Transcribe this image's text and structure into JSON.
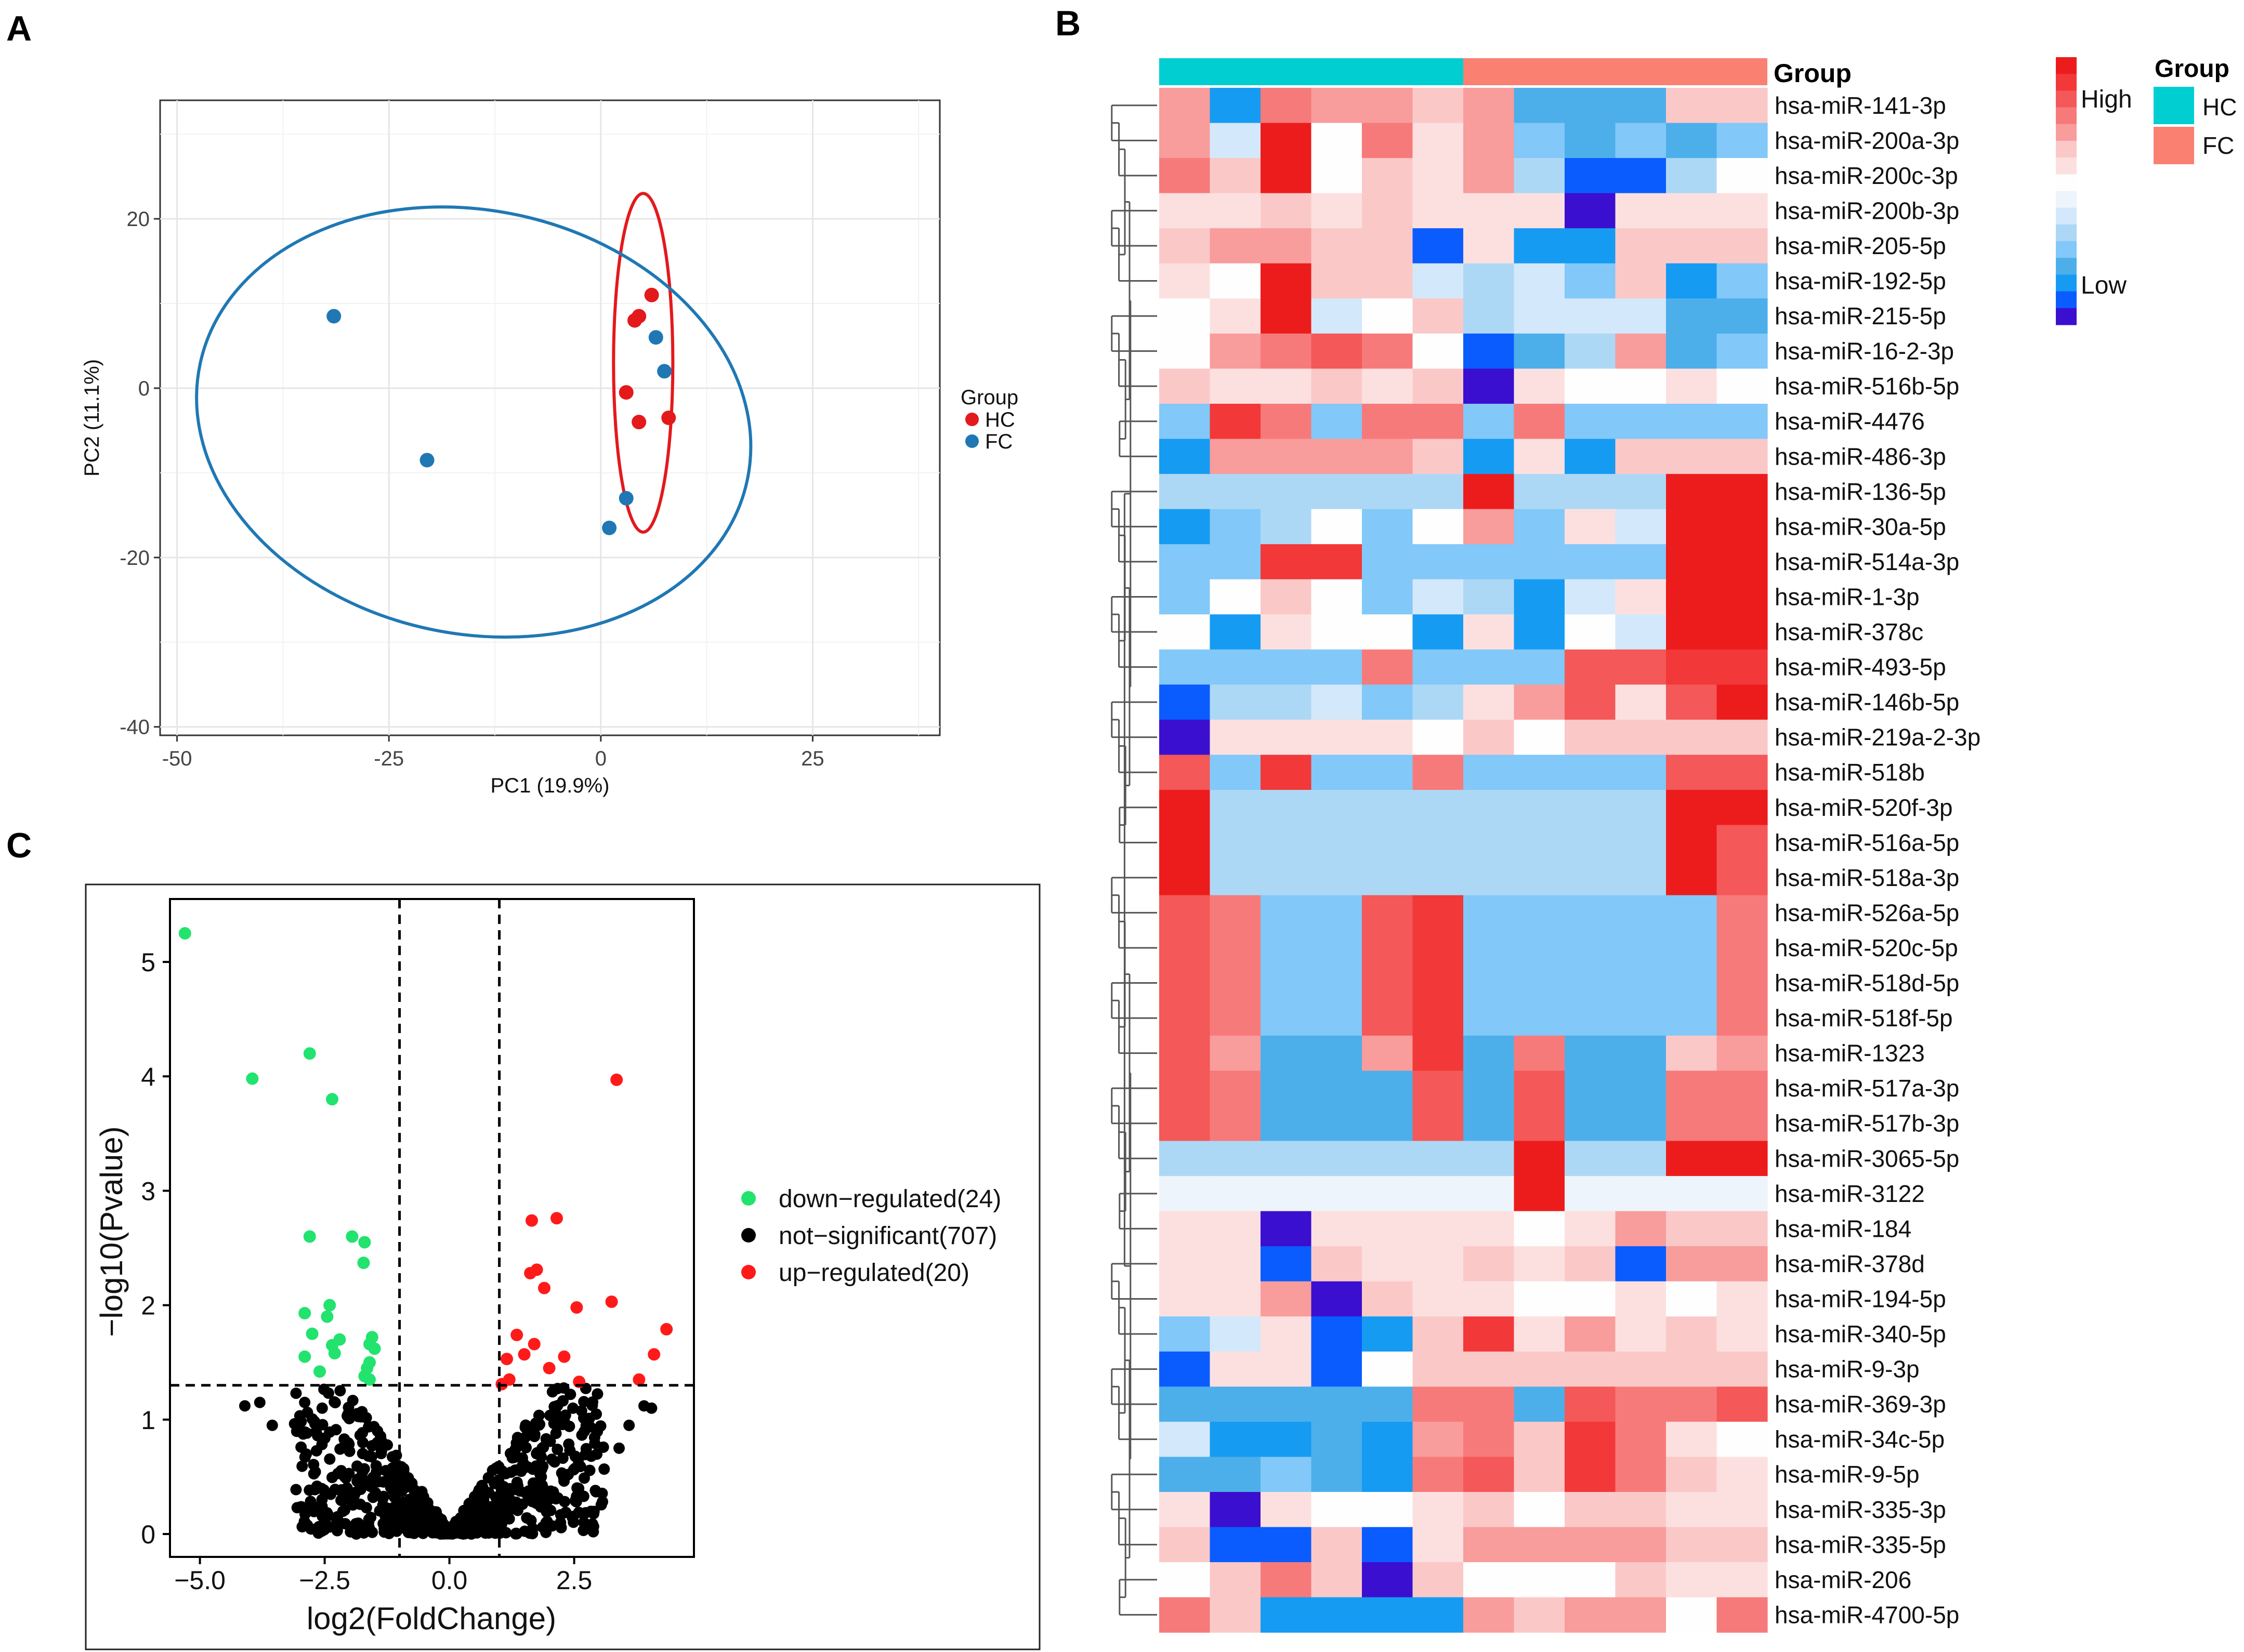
{
  "panels": {
    "a": "A",
    "b": "B",
    "c": "C"
  },
  "chart_data": [
    {
      "type": "scatter",
      "panel": "A",
      "xlabel": "PC1 (19.9%)",
      "ylabel": "PC2 (11.1%)",
      "xlim": [
        -52,
        40
      ],
      "ylim": [
        -41,
        34
      ],
      "xticks": [
        -50,
        -25,
        0,
        25
      ],
      "yticks": [
        20,
        0,
        -20,
        -40
      ],
      "xtick_labels": [
        "-50",
        "-25",
        "0",
        "25"
      ],
      "ytick_labels": [
        "20",
        "0",
        "-20",
        "-40"
      ],
      "legend": {
        "title": "Group",
        "items": [
          "HC",
          "FC"
        ],
        "colors": [
          "#e3191c",
          "#1f78b4"
        ]
      },
      "series": [
        {
          "name": "HC",
          "color": "#e3191c",
          "x": [
            6,
            4.5,
            4,
            3,
            4.5,
            8
          ],
          "y": [
            11,
            8.5,
            8,
            -0.5,
            -4,
            -3.5
          ]
        },
        {
          "name": "FC",
          "color": "#1f78b4",
          "x": [
            -31.5,
            -20.5,
            6.5,
            7.5,
            3,
            1
          ],
          "y": [
            8.5,
            -8.5,
            6,
            2,
            -13,
            -16.5
          ]
        }
      ],
      "ellipses": [
        {
          "group": "HC",
          "cx": 5,
          "cy": 3,
          "rx": 3.5,
          "ry": 20
        },
        {
          "group": "FC",
          "cx": -15,
          "cy": -4,
          "rx": 33,
          "ry": 25,
          "rotation_deg": 12
        }
      ]
    },
    {
      "type": "heatmap",
      "panel": "B",
      "annotation_title": "Group",
      "annotation_groups": [
        {
          "name": "HC",
          "color": "#00ced1",
          "columns": 6
        },
        {
          "name": "FC",
          "color": "#fa8072",
          "columns": 6
        }
      ],
      "scale_labels": {
        "high": "High",
        "low": "Low"
      },
      "palette": [
        "#3b0fcf",
        "#0a5cff",
        "#169bf3",
        "#4dafea",
        "#82c8f8",
        "#add8f5",
        "#d3e8fa",
        "#eef4fb",
        "#fefefe",
        "#fce0e0",
        "#fbc8c8",
        "#f99c9c",
        "#f77a7a",
        "#f45858",
        "#f23838",
        "#ed1c1c"
      ],
      "rows": [
        "hsa-miR-141-3p",
        "hsa-miR-200a-3p",
        "hsa-miR-200c-3p",
        "hsa-miR-200b-3p",
        "hsa-miR-205-5p",
        "hsa-miR-192-5p",
        "hsa-miR-215-5p",
        "hsa-miR-16-2-3p",
        "hsa-miR-516b-5p",
        "hsa-miR-4476",
        "hsa-miR-486-3p",
        "hsa-miR-136-5p",
        "hsa-miR-30a-5p",
        "hsa-miR-514a-3p",
        "hsa-miR-1-3p",
        "hsa-miR-378c",
        "hsa-miR-493-5p",
        "hsa-miR-146b-5p",
        "hsa-miR-219a-2-3p",
        "hsa-miR-518b",
        "hsa-miR-520f-3p",
        "hsa-miR-516a-5p",
        "hsa-miR-518a-3p",
        "hsa-miR-526a-5p",
        "hsa-miR-520c-5p",
        "hsa-miR-518d-5p",
        "hsa-miR-518f-5p",
        "hsa-miR-1323",
        "hsa-miR-517a-3p",
        "hsa-miR-517b-3p",
        "hsa-miR-3065-5p",
        "hsa-miR-3122",
        "hsa-miR-184",
        "hsa-miR-378d",
        "hsa-miR-194-5p",
        "hsa-miR-340-5p",
        "hsa-miR-9-3p",
        "hsa-miR-369-3p",
        "hsa-miR-34c-5p",
        "hsa-miR-9-5p",
        "hsa-miR-335-3p",
        "hsa-miR-335-5p",
        "hsa-miR-206",
        "hsa-miR-4700-5p"
      ],
      "values": [
        [
          11,
          2,
          12,
          11,
          11,
          10,
          11,
          3,
          3,
          3,
          10,
          10
        ],
        [
          11,
          6,
          15,
          8,
          12,
          9,
          11,
          4,
          3,
          4,
          3,
          4
        ],
        [
          12,
          10,
          15,
          8,
          10,
          9,
          11,
          5,
          1,
          1,
          5,
          8
        ],
        [
          9,
          9,
          10,
          9,
          10,
          9,
          9,
          9,
          0,
          9,
          9,
          9
        ],
        [
          10,
          11,
          11,
          10,
          10,
          1,
          9,
          2,
          2,
          10,
          10,
          10
        ],
        [
          9,
          8,
          15,
          10,
          10,
          6,
          5,
          6,
          4,
          10,
          2,
          4
        ],
        [
          8,
          9,
          15,
          6,
          8,
          10,
          5,
          6,
          6,
          6,
          3,
          3
        ],
        [
          8,
          11,
          12,
          13,
          12,
          8,
          1,
          3,
          5,
          11,
          3,
          4
        ],
        [
          10,
          9,
          9,
          10,
          9,
          10,
          0,
          9,
          8,
          8,
          9,
          8
        ],
        [
          4,
          14,
          12,
          4,
          12,
          12,
          4,
          12,
          4,
          4,
          4,
          4
        ],
        [
          2,
          11,
          11,
          11,
          11,
          10,
          2,
          9,
          2,
          10,
          10,
          10
        ],
        [
          5,
          5,
          5,
          5,
          5,
          5,
          15,
          5,
          5,
          5,
          15,
          15
        ],
        [
          2,
          4,
          5,
          8,
          4,
          8,
          11,
          4,
          9,
          6,
          15,
          15
        ],
        [
          4,
          4,
          14,
          14,
          4,
          4,
          4,
          4,
          4,
          4,
          15,
          15
        ],
        [
          4,
          8,
          10,
          8,
          4,
          6,
          5,
          2,
          6,
          9,
          15,
          15
        ],
        [
          8,
          2,
          9,
          8,
          8,
          2,
          9,
          2,
          8,
          6,
          15,
          15
        ],
        [
          4,
          4,
          4,
          4,
          12,
          4,
          4,
          4,
          13,
          13,
          14,
          14
        ],
        [
          1,
          5,
          5,
          6,
          4,
          5,
          9,
          11,
          13,
          9,
          13,
          15
        ],
        [
          0,
          9,
          9,
          9,
          9,
          8,
          10,
          8,
          10,
          10,
          10,
          10
        ],
        [
          13,
          4,
          14,
          4,
          4,
          12,
          4,
          4,
          4,
          4,
          13,
          13
        ],
        [
          15,
          5,
          5,
          5,
          5,
          5,
          5,
          5,
          5,
          5,
          15,
          15
        ],
        [
          15,
          5,
          5,
          5,
          5,
          5,
          5,
          5,
          5,
          5,
          15,
          13
        ],
        [
          15,
          5,
          5,
          5,
          5,
          5,
          5,
          5,
          5,
          5,
          15,
          13
        ],
        [
          13,
          12,
          4,
          4,
          13,
          14,
          4,
          4,
          4,
          4,
          4,
          12
        ],
        [
          13,
          12,
          4,
          4,
          13,
          14,
          4,
          4,
          4,
          4,
          4,
          12
        ],
        [
          13,
          12,
          4,
          4,
          13,
          14,
          4,
          4,
          4,
          4,
          4,
          12
        ],
        [
          13,
          12,
          4,
          4,
          13,
          14,
          4,
          4,
          4,
          4,
          4,
          12
        ],
        [
          13,
          11,
          3,
          3,
          11,
          14,
          3,
          12,
          3,
          3,
          10,
          11
        ],
        [
          13,
          12,
          3,
          3,
          3,
          13,
          3,
          13,
          3,
          3,
          12,
          12
        ],
        [
          13,
          12,
          3,
          3,
          3,
          13,
          3,
          13,
          3,
          3,
          12,
          12
        ],
        [
          5,
          5,
          5,
          5,
          5,
          5,
          5,
          15,
          5,
          5,
          15,
          15
        ],
        [
          7,
          7,
          7,
          7,
          7,
          7,
          7,
          15,
          7,
          7,
          7,
          7
        ],
        [
          9,
          9,
          0,
          9,
          9,
          9,
          9,
          8,
          9,
          11,
          10,
          10
        ],
        [
          9,
          9,
          1,
          10,
          9,
          9,
          10,
          9,
          10,
          1,
          11,
          11
        ],
        [
          9,
          9,
          11,
          0,
          10,
          9,
          9,
          8,
          8,
          9,
          8,
          9
        ],
        [
          4,
          6,
          9,
          1,
          2,
          10,
          14,
          9,
          11,
          9,
          10,
          9
        ],
        [
          1,
          9,
          9,
          1,
          8,
          10,
          10,
          10,
          10,
          10,
          10,
          10
        ],
        [
          3,
          3,
          3,
          3,
          3,
          12,
          12,
          3,
          13,
          12,
          12,
          13
        ],
        [
          6,
          2,
          2,
          3,
          2,
          11,
          12,
          10,
          14,
          12,
          9,
          8
        ],
        [
          3,
          3,
          4,
          3,
          2,
          12,
          13,
          10,
          14,
          12,
          10,
          9
        ],
        [
          9,
          0,
          9,
          8,
          8,
          9,
          10,
          8,
          10,
          10,
          9,
          9
        ],
        [
          10,
          1,
          1,
          10,
          1,
          9,
          11,
          11,
          11,
          11,
          10,
          10
        ],
        [
          8,
          10,
          12,
          10,
          0,
          10,
          8,
          8,
          8,
          10,
          9,
          9
        ],
        [
          12,
          10,
          2,
          2,
          2,
          2,
          11,
          10,
          11,
          11,
          8,
          12
        ]
      ]
    },
    {
      "type": "scatter",
      "panel": "C",
      "xlabel": "log2(FoldChange)",
      "ylabel": "−log10(Pvalue)",
      "xlim": [
        -5.6,
        4.9
      ],
      "ylim": [
        -0.2,
        5.55
      ],
      "xticks": [
        -5,
        -2.5,
        0,
        2.5
      ],
      "yticks": [
        0,
        1,
        2,
        3,
        4,
        5
      ],
      "xtick_labels": [
        "−5.0",
        "−2.5",
        "0.0",
        "2.5"
      ],
      "ytick_labels": [
        "0",
        "1",
        "2",
        "3",
        "4",
        "5"
      ],
      "thresholds": {
        "x": [
          -1,
          1
        ],
        "y": 1.3
      },
      "legend": {
        "items": [
          "down−regulated(24)",
          "not−significant(707)",
          "up−regulated(20)"
        ],
        "colors": [
          "#21e36e",
          "#000000",
          "#ff1a1a"
        ]
      },
      "series": [
        {
          "name": "down-regulated",
          "color": "#21e36e",
          "x": [
            -5.3,
            -3.95,
            -2.8,
            -2.35,
            -2.8,
            -1.95,
            -1.7,
            -1.72,
            -2.4,
            -2.9,
            -2.45,
            -2.75,
            -1.55,
            -1.5,
            -2.35,
            -2.9,
            -1.6,
            -1.65,
            -1.6,
            -2.3,
            -1.6,
            -2.6,
            -1.7,
            -2.2
          ],
          "y": [
            5.25,
            3.98,
            4.2,
            3.8,
            2.6,
            2.6,
            2.55,
            2.37,
            2.0,
            1.93,
            1.9,
            1.75,
            1.72,
            1.62,
            1.65,
            1.55,
            1.35,
            1.45,
            1.66,
            1.58,
            1.5,
            1.42,
            1.38,
            1.7
          ]
        },
        {
          "name": "up-regulated",
          "color": "#ff1a1a",
          "x": [
            3.35,
            1.65,
            2.15,
            1.75,
            1.62,
            1.9,
            3.25,
            2.55,
            1.35,
            4.35,
            1.7,
            1.5,
            2.3,
            4.1,
            1.15,
            3.8,
            2.0,
            1.2,
            2.6,
            1.05
          ],
          "y": [
            3.97,
            2.74,
            2.76,
            2.31,
            2.28,
            2.15,
            2.03,
            1.98,
            1.74,
            1.79,
            1.66,
            1.57,
            1.55,
            1.57,
            1.53,
            1.35,
            1.45,
            1.35,
            1.33,
            1.31
          ]
        },
        {
          "name": "not-significant",
          "color": "#000000",
          "count": 707
        }
      ]
    }
  ]
}
